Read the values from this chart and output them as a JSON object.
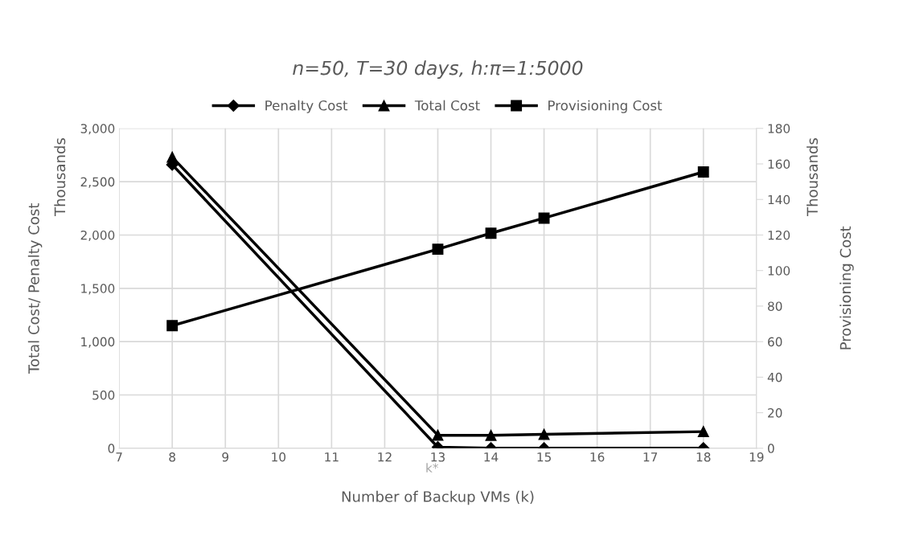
{
  "chart_data": {
    "type": "line",
    "title": "n=50, T=30 days, h:π=1:5000",
    "xlabel": "Number of Backup VMs (k)",
    "ylabel": "Total Cost/ Penalty Cost",
    "y2label": "Provisioning Cost",
    "x": [
      8,
      13,
      14,
      15,
      18
    ],
    "series": [
      {
        "name": "Penalty Cost",
        "color": "#000000",
        "marker": "diamond",
        "values": [
          2660,
          10,
          0,
          0,
          0
        ]
      },
      {
        "name": "Total Cost",
        "color": "#000000",
        "marker": "triangle",
        "values": [
          2730,
          122,
          121,
          130,
          156
        ]
      },
      {
        "name": "Provisioning Cost",
        "color": "#000000",
        "marker": "square",
        "axis": "y2",
        "values": [
          69,
          112,
          121,
          129.5,
          155.5
        ]
      }
    ],
    "xlim": [
      7,
      19
    ],
    "xticks": [
      7,
      8,
      9,
      10,
      11,
      12,
      13,
      14,
      15,
      16,
      17,
      18,
      19
    ],
    "ylim": [
      0,
      3000
    ],
    "yticks": [
      {
        "value": 0,
        "label": "0"
      },
      {
        "value": 500,
        "label": "500"
      },
      {
        "value": 1000,
        "label": "1,000"
      },
      {
        "value": 1500,
        "label": "1,500"
      },
      {
        "value": 2000,
        "label": "2,000"
      },
      {
        "value": 2500,
        "label": "2,500"
      },
      {
        "value": 3000,
        "label": "3,000"
      }
    ],
    "y2lim": [
      0,
      180
    ],
    "y2ticks": [
      0,
      20,
      40,
      60,
      80,
      100,
      120,
      140,
      160,
      180
    ],
    "annotations": [
      "Thousands",
      "Thousands",
      "k*"
    ],
    "grid": true,
    "legend": "top",
    "line_style": "solid"
  }
}
